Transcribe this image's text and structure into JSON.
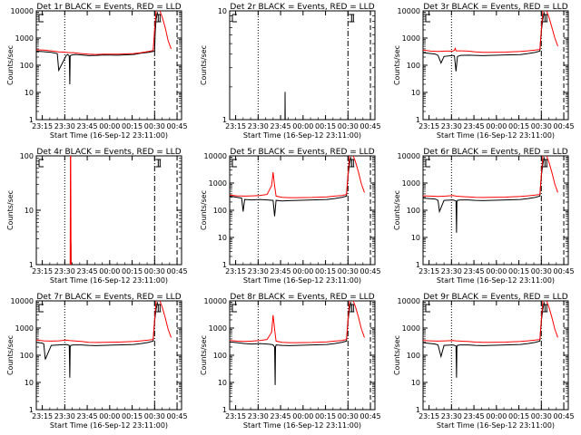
{
  "colors": {
    "events": "#000000",
    "lld": "#ff0000",
    "background": "#ffffff"
  },
  "common": {
    "ylabel": "Counts/sec",
    "xlabel": "Start Time (16-Sep-12 23:11:00)",
    "xticks": [
      "23:15",
      "23:30",
      "23:45",
      "00:00",
      "00:15",
      "00:30",
      "00:45"
    ],
    "dotted_line_label": "23:30",
    "dashdot_line_label": "00:30",
    "dashed_line_label": "00:45"
  },
  "chart_data": [
    {
      "type": "line",
      "title": "Det 1r BLACK = Events, RED = LLD",
      "ylog": true,
      "yticks": [
        "1",
        "10",
        "100",
        "1000",
        "10000"
      ],
      "ylim": [
        1,
        10000
      ],
      "series": [
        {
          "color": "#000000",
          "x": [
            0,
            10,
            14,
            15,
            20,
            21,
            22,
            22.4,
            22.6,
            23,
            24,
            26,
            30,
            35,
            40,
            45,
            55,
            65,
            70,
            75,
            78,
            79,
            79.4,
            80,
            81
          ],
          "y": [
            330,
            300,
            270,
            65,
            230,
            250,
            220,
            20,
            210,
            230,
            240,
            250,
            240,
            225,
            230,
            240,
            235,
            250,
            280,
            300,
            320,
            340,
            1700,
            5000,
            9000
          ]
        },
        {
          "color": "#ff0000",
          "x": [
            0,
            5,
            10,
            15,
            20,
            22,
            25,
            30,
            35,
            40,
            45,
            55,
            65,
            70,
            75,
            78,
            79,
            80,
            81,
            82,
            84,
            86,
            88,
            90
          ],
          "y": [
            370,
            360,
            340,
            310,
            300,
            290,
            290,
            270,
            255,
            250,
            255,
            255,
            270,
            290,
            320,
            350,
            2000,
            10000,
            13000,
            12000,
            6000,
            2500,
            800,
            400
          ]
        }
      ]
    },
    {
      "type": "line",
      "title": "Det 2r BLACK = Events, RED = LLD",
      "ylog": true,
      "yticks": [
        "1",
        "10"
      ],
      "ylim": [
        1,
        10
      ],
      "series": [
        {
          "color": "#000000",
          "x": [
            36.9,
            37,
            37.1
          ],
          "y": [
            1,
            1.8,
            1
          ]
        }
      ]
    },
    {
      "type": "line",
      "title": "Det 3r BLACK = Events, RED = LLD",
      "ylog": true,
      "yticks": [
        "1",
        "10",
        "100",
        "1000",
        "10000"
      ],
      "ylim": [
        1,
        10000
      ],
      "series": [
        {
          "color": "#000000",
          "x": [
            0,
            8,
            10,
            12,
            14,
            20,
            21,
            22,
            23,
            25,
            30,
            35,
            40,
            45,
            55,
            65,
            70,
            75,
            78,
            79,
            80,
            81
          ],
          "y": [
            290,
            260,
            230,
            120,
            210,
            230,
            220,
            60,
            210,
            230,
            235,
            230,
            225,
            230,
            240,
            245,
            270,
            300,
            330,
            1800,
            5000,
            9000
          ]
        },
        {
          "color": "#ff0000",
          "x": [
            0,
            5,
            10,
            15,
            20,
            21,
            21.5,
            22,
            25,
            30,
            35,
            40,
            45,
            55,
            65,
            70,
            75,
            78,
            79,
            80,
            81,
            82,
            84,
            86,
            88,
            90
          ],
          "y": [
            360,
            330,
            320,
            330,
            330,
            360,
            420,
            340,
            340,
            330,
            310,
            300,
            300,
            305,
            320,
            340,
            360,
            380,
            2000,
            10000,
            13000,
            12000,
            6000,
            2500,
            1000,
            500
          ]
        }
      ]
    },
    {
      "type": "line",
      "title": "Det 4r BLACK = Events, RED = LLD",
      "ylog": true,
      "yticks": [
        "1",
        "10",
        "100"
      ],
      "ylim": [
        1,
        100
      ],
      "series": [
        {
          "color": "#000000",
          "x": [
            23,
            23.1,
            23.2
          ],
          "y": [
            1,
            2.5,
            1
          ]
        },
        {
          "color": "#ff0000",
          "x": [
            22.6,
            22.8,
            23,
            23.2
          ],
          "y": [
            1,
            100,
            100,
            1
          ]
        }
      ]
    },
    {
      "type": "line",
      "title": "Det 5r BLACK = Events, RED = LLD",
      "ylog": true,
      "yticks": [
        "1",
        "10",
        "100",
        "1000",
        "10000"
      ],
      "ylim": [
        1,
        10000
      ],
      "series": [
        {
          "color": "#000000",
          "x": [
            0,
            5,
            8,
            9,
            10,
            15,
            20,
            25,
            29,
            30,
            31,
            35,
            40,
            45,
            55,
            65,
            70,
            75,
            78,
            79,
            80,
            81
          ],
          "y": [
            330,
            300,
            280,
            90,
            250,
            240,
            250,
            240,
            230,
            60,
            230,
            220,
            225,
            230,
            240,
            250,
            270,
            300,
            330,
            1800,
            5000,
            9000
          ]
        },
        {
          "color": "#ff0000",
          "x": [
            0,
            5,
            10,
            15,
            20,
            25,
            28,
            29,
            30,
            31,
            35,
            40,
            45,
            55,
            65,
            70,
            75,
            78,
            79,
            80,
            81,
            82,
            84,
            86,
            88,
            90
          ],
          "y": [
            360,
            340,
            330,
            340,
            350,
            380,
            800,
            2500,
            800,
            330,
            300,
            290,
            290,
            295,
            310,
            330,
            350,
            380,
            2000,
            10000,
            13000,
            12000,
            6000,
            2500,
            900,
            450
          ]
        }
      ]
    },
    {
      "type": "line",
      "title": "Det 6r BLACK = Events, RED = LLD",
      "ylog": true,
      "yticks": [
        "1",
        "10",
        "100",
        "1000",
        "10000"
      ],
      "ylim": [
        1,
        10000
      ],
      "series": [
        {
          "color": "#000000",
          "x": [
            0,
            8,
            10,
            11,
            14,
            20,
            22,
            22.4,
            22.6,
            23,
            25,
            30,
            35,
            40,
            45,
            55,
            65,
            70,
            75,
            78,
            79,
            80,
            81
          ],
          "y": [
            280,
            260,
            230,
            90,
            230,
            240,
            220,
            15,
            200,
            230,
            240,
            240,
            230,
            225,
            230,
            240,
            250,
            270,
            300,
            330,
            1800,
            5000,
            9000
          ]
        },
        {
          "color": "#ff0000",
          "x": [
            0,
            5,
            10,
            15,
            20,
            22,
            25,
            30,
            35,
            40,
            45,
            55,
            65,
            70,
            75,
            78,
            79,
            80,
            81,
            82,
            84,
            86,
            88,
            90
          ],
          "y": [
            340,
            330,
            320,
            330,
            350,
            330,
            320,
            310,
            300,
            295,
            300,
            305,
            320,
            340,
            360,
            380,
            2000,
            10000,
            13000,
            12000,
            6000,
            2500,
            900,
            450
          ]
        }
      ]
    },
    {
      "type": "line",
      "title": "Det 7r BLACK = Events, RED = LLD",
      "ylog": true,
      "yticks": [
        "1",
        "10",
        "100",
        "1000",
        "10000"
      ],
      "ylim": [
        1,
        10000
      ],
      "series": [
        {
          "color": "#000000",
          "x": [
            0,
            4,
            5,
            6,
            10,
            15,
            20,
            22,
            22.4,
            22.6,
            23,
            25,
            30,
            35,
            40,
            45,
            55,
            65,
            70,
            75,
            78,
            79,
            80,
            81
          ],
          "y": [
            300,
            280,
            260,
            70,
            230,
            240,
            250,
            230,
            15,
            200,
            230,
            240,
            240,
            230,
            225,
            230,
            240,
            250,
            270,
            300,
            330,
            1800,
            5000,
            9000
          ]
        },
        {
          "color": "#ff0000",
          "x": [
            0,
            5,
            10,
            15,
            20,
            22,
            25,
            30,
            35,
            40,
            45,
            55,
            65,
            70,
            75,
            78,
            79,
            80,
            81,
            82,
            84,
            86,
            88,
            90
          ],
          "y": [
            360,
            340,
            330,
            340,
            360,
            350,
            340,
            320,
            300,
            295,
            300,
            305,
            320,
            340,
            360,
            380,
            2000,
            10000,
            13000,
            12000,
            6000,
            2500,
            900,
            450
          ]
        }
      ]
    },
    {
      "type": "line",
      "title": "Det 8r BLACK = Events, RED = LLD",
      "ylog": true,
      "yticks": [
        "1",
        "10",
        "100",
        "1000",
        "10000"
      ],
      "ylim": [
        1,
        10000
      ],
      "series": [
        {
          "color": "#000000",
          "x": [
            0,
            5,
            10,
            15,
            20,
            25,
            28,
            29,
            30,
            30.4,
            30.6,
            31,
            35,
            40,
            45,
            55,
            65,
            70,
            75,
            78,
            79,
            80,
            81
          ],
          "y": [
            310,
            290,
            270,
            260,
            270,
            260,
            250,
            240,
            200,
            8,
            200,
            240,
            230,
            225,
            230,
            240,
            250,
            270,
            300,
            330,
            1800,
            5000,
            9000
          ]
        },
        {
          "color": "#ff0000",
          "x": [
            0,
            5,
            10,
            15,
            20,
            25,
            28,
            29,
            30,
            31,
            35,
            40,
            45,
            55,
            65,
            70,
            75,
            78,
            79,
            80,
            81,
            82,
            84,
            86,
            88,
            90
          ],
          "y": [
            350,
            330,
            320,
            330,
            350,
            380,
            700,
            3000,
            900,
            330,
            300,
            290,
            290,
            295,
            310,
            330,
            350,
            380,
            2000,
            10000,
            13000,
            12000,
            6000,
            2500,
            900,
            450
          ]
        }
      ]
    },
    {
      "type": "line",
      "title": "Det 9r BLACK = Events, RED = LLD",
      "ylog": true,
      "yticks": [
        "1",
        "10",
        "100",
        "1000",
        "10000"
      ],
      "ylim": [
        1,
        10000
      ],
      "series": [
        {
          "color": "#000000",
          "x": [
            0,
            8,
            10,
            12,
            14,
            20,
            22,
            22.4,
            22.6,
            23,
            25,
            30,
            35,
            40,
            45,
            55,
            65,
            70,
            75,
            78,
            79,
            80,
            81
          ],
          "y": [
            290,
            260,
            240,
            90,
            230,
            240,
            220,
            15,
            200,
            230,
            240,
            240,
            230,
            225,
            230,
            240,
            250,
            270,
            300,
            330,
            1800,
            5000,
            9000
          ]
        },
        {
          "color": "#ff0000",
          "x": [
            0,
            5,
            10,
            15,
            20,
            22,
            25,
            30,
            35,
            40,
            45,
            55,
            65,
            70,
            75,
            78,
            79,
            80,
            81,
            82,
            84,
            86,
            88,
            90
          ],
          "y": [
            350,
            340,
            330,
            340,
            350,
            340,
            330,
            320,
            305,
            300,
            300,
            305,
            320,
            340,
            360,
            380,
            2000,
            10000,
            13000,
            12000,
            6000,
            2500,
            900,
            450
          ]
        }
      ]
    }
  ]
}
